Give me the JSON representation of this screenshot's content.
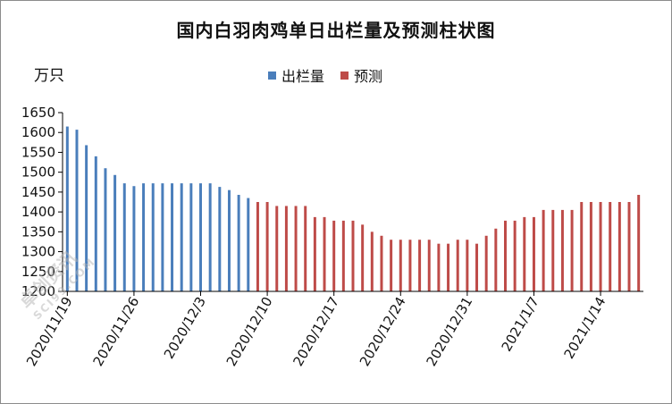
{
  "title": "国内白羽肉鸡单日出栏量及预测柱状图",
  "unit": "万只",
  "watermark": {
    "main": "卓创资讯",
    "sub": "SCI99.COM"
  },
  "colors": {
    "actual": "#4a7ebb",
    "forecast": "#be4b48",
    "axis": "#000000"
  },
  "chart_data": {
    "type": "bar",
    "title": "国内白羽肉鸡单日出栏量及预测柱状图",
    "ylabel": "万只",
    "ylim": [
      1200,
      1650
    ],
    "yticks": [
      1200,
      1250,
      1300,
      1350,
      1400,
      1450,
      1500,
      1550,
      1600,
      1650
    ],
    "legend_position": "top",
    "x_tick_labels": [
      "2020/11/19",
      "2020/11/26",
      "2020/12/3",
      "2020/12/10",
      "2020/12/17",
      "2020/12/24",
      "2020/12/31",
      "2021/1/7",
      "2021/1/14"
    ],
    "series": [
      {
        "name": "出栏量",
        "color": "#4a7ebb",
        "x": [
          "2020/11/19",
          "2020/11/20",
          "2020/11/21",
          "2020/11/22",
          "2020/11/23",
          "2020/11/24",
          "2020/11/25",
          "2020/11/26",
          "2020/11/27",
          "2020/11/28",
          "2020/11/29",
          "2020/11/30",
          "2020/12/1",
          "2020/12/2",
          "2020/12/3",
          "2020/12/4",
          "2020/12/5",
          "2020/12/6",
          "2020/12/7",
          "2020/12/8"
        ],
        "values": [
          1615,
          1607,
          1568,
          1540,
          1510,
          1493,
          1472,
          1465,
          1472,
          1472,
          1472,
          1472,
          1472,
          1472,
          1472,
          1472,
          1463,
          1455,
          1443,
          1435
        ]
      },
      {
        "name": "预测",
        "color": "#be4b48",
        "x": [
          "2020/12/9",
          "2020/12/10",
          "2020/12/11",
          "2020/12/12",
          "2020/12/13",
          "2020/12/14",
          "2020/12/15",
          "2020/12/16",
          "2020/12/17",
          "2020/12/18",
          "2020/12/19",
          "2020/12/20",
          "2020/12/21",
          "2020/12/22",
          "2020/12/23",
          "2020/12/24",
          "2020/12/25",
          "2020/12/26",
          "2020/12/27",
          "2020/12/28",
          "2020/12/29",
          "2020/12/30",
          "2020/12/31",
          "2021/1/1",
          "2021/1/2",
          "2021/1/3",
          "2021/1/4",
          "2021/1/5",
          "2021/1/6",
          "2021/1/7",
          "2021/1/8",
          "2021/1/9",
          "2021/1/10",
          "2021/1/11",
          "2021/1/12",
          "2021/1/13",
          "2021/1/14",
          "2021/1/15",
          "2021/1/16",
          "2021/1/17",
          "2021/1/18"
        ],
        "values": [
          1425,
          1425,
          1415,
          1415,
          1415,
          1415,
          1387,
          1387,
          1378,
          1378,
          1378,
          1368,
          1350,
          1340,
          1330,
          1330,
          1330,
          1330,
          1330,
          1320,
          1320,
          1330,
          1330,
          1320,
          1340,
          1358,
          1378,
          1378,
          1387,
          1387,
          1405,
          1405,
          1405,
          1405,
          1425,
          1425,
          1425,
          1425,
          1425,
          1425,
          1443
        ]
      }
    ]
  }
}
